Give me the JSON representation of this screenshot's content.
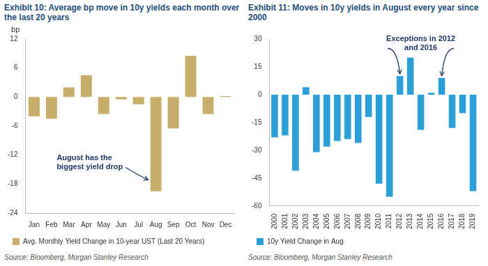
{
  "chart_data": [
    {
      "type": "bar",
      "title": "Exhibit 10: Average bp move in 10y yields each month over the last 20 years",
      "ylabel": "bp",
      "categories": [
        "Jan",
        "Feb",
        "Mar",
        "Apr",
        "May",
        "Jun",
        "Jul",
        "Aug",
        "Sep",
        "Oct",
        "Nov",
        "Dec"
      ],
      "series": [
        {
          "name": "Avg. Monthly Yield Change in 10-year UST (Last 20 Years)",
          "color": "#c8ae6a",
          "values": [
            -4,
            -4.5,
            2,
            4.5,
            -3.5,
            -0.5,
            -1.5,
            -19.5,
            -6.5,
            8.5,
            -3.5,
            0.2
          ]
        }
      ],
      "ylim": [
        -24,
        12
      ],
      "yticks": [
        -24,
        -18,
        -12,
        -6,
        0,
        6,
        12
      ],
      "grid": false,
      "legend": "bottom",
      "annotations": [
        {
          "text": [
            "August has the",
            "biggest yield drop"
          ],
          "target": "Aug"
        }
      ],
      "source": "Source: Bloomberg, Morgan Stanley Research"
    },
    {
      "type": "bar",
      "title": "Exhibit 11: Moves in 10y yields in August every year since 2000",
      "categories": [
        "2000",
        "2001",
        "2002",
        "2003",
        "2004",
        "2005",
        "2006",
        "2007",
        "2008",
        "2009",
        "2010",
        "2011",
        "2012",
        "2013",
        "2014",
        "2015",
        "2016",
        "2017",
        "2018",
        "2019"
      ],
      "series": [
        {
          "name": "10y Yield Change in Aug",
          "color": "#2a9fd8",
          "values": [
            -23,
            -22,
            -41,
            4,
            -31,
            -28,
            -25,
            -24,
            -26,
            -12,
            -48,
            -55,
            10,
            20,
            -19,
            1,
            9,
            -18,
            -10,
            -52
          ]
        }
      ],
      "ylim": [
        -60,
        30
      ],
      "yticks": [
        -60,
        -45,
        -30,
        -15,
        0,
        15,
        30
      ],
      "grid": false,
      "legend": "bottom",
      "annotations": [
        {
          "text": [
            "Exceptions in 2012",
            "and 2016"
          ],
          "targets": [
            "2012",
            "2016"
          ]
        }
      ],
      "source": "Source: Bloomberg, Morgan Stanley Research"
    }
  ]
}
